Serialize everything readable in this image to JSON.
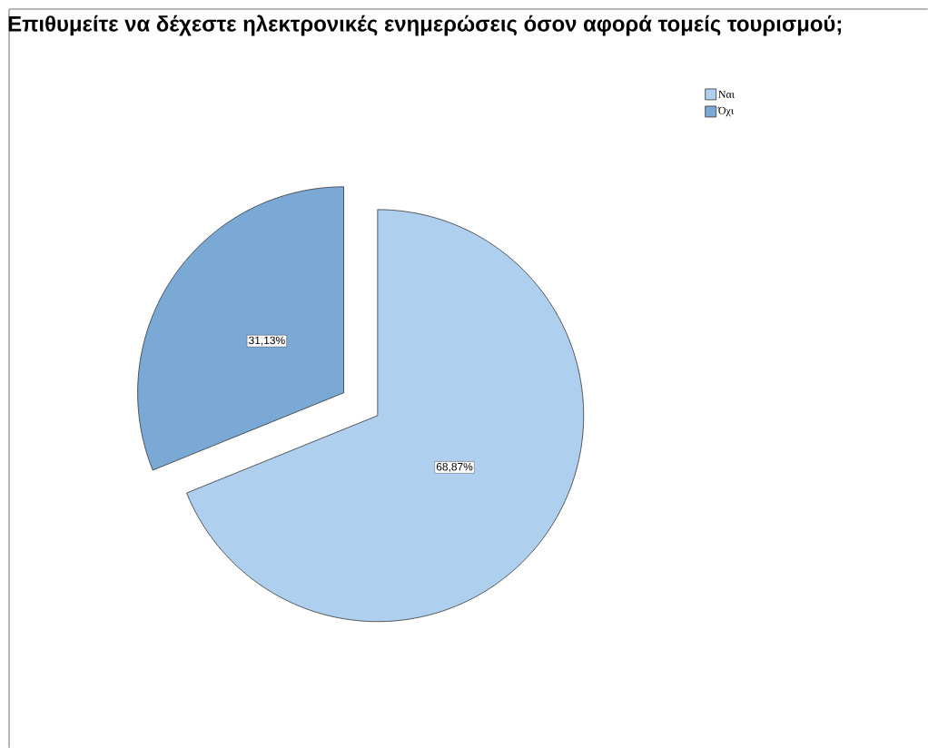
{
  "chart_data": {
    "type": "pie",
    "title": "Επιθυμείτε να δέχεστε ηλεκτρονικές ενημερώσεις όσον αφορά τομείς τουρισμού;",
    "categories": [
      "Ναι",
      "Όχι"
    ],
    "values": [
      68.87,
      31.13
    ],
    "colors": [
      "#aed0ee",
      "#7aa9d6"
    ],
    "value_labels": [
      "68,87%",
      "31,13%"
    ],
    "legend": "top right"
  }
}
